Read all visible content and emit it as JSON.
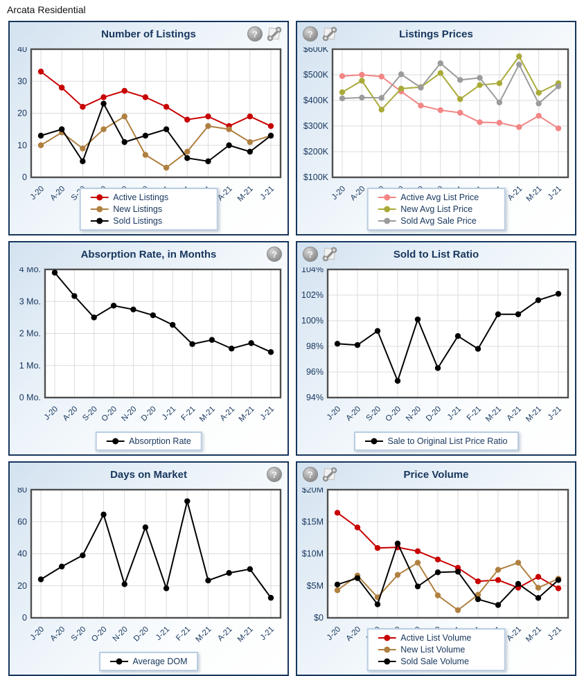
{
  "page": {
    "title": "Arcata Residential"
  },
  "palette": {
    "navy_text": "#17365D",
    "red": "#C80000",
    "tan": "#B08040",
    "salmon": "#F28585",
    "olive": "#A9AA38",
    "gray": "#9B9B9B",
    "black": "#000000",
    "grid_line": "#DBDBDB",
    "plot_border": "#4F4F4F",
    "panel_border": "#16365C"
  },
  "icons_legend": {
    "help": "question-mark-help",
    "settings": "wrench-settings"
  },
  "categories": [
    "J-20",
    "A-20",
    "S-20",
    "O-20",
    "N-20",
    "D-20",
    "J-21",
    "F-21",
    "M-21",
    "A-21",
    "M-21",
    "J-21"
  ],
  "chart_data": [
    {
      "type": "line",
      "title": "Number of Listings",
      "icons": {
        "side": "right",
        "help": true,
        "settings": true
      },
      "ylim": [
        0,
        40
      ],
      "yticks": [
        {
          "v": 0,
          "label": "0"
        },
        {
          "v": 10,
          "label": "10"
        },
        {
          "v": 20,
          "label": "20"
        },
        {
          "v": 30,
          "label": "30"
        },
        {
          "v": 40,
          "label": "40"
        }
      ],
      "legend_max_width": 0,
      "series": [
        {
          "name": "Active Listings",
          "color": "#C80000",
          "values": [
            33,
            28,
            22,
            25,
            27,
            25,
            22,
            18,
            19,
            16,
            19,
            16
          ]
        },
        {
          "name": "New Listings",
          "color": "#B08040",
          "values": [
            10,
            14,
            9,
            15,
            19,
            7,
            3,
            8,
            16,
            15,
            11,
            13
          ]
        },
        {
          "name": "Sold Listings",
          "color": "#000000",
          "values": [
            13,
            15,
            5,
            23,
            11,
            13,
            15,
            6,
            5,
            10,
            8,
            13
          ]
        }
      ]
    },
    {
      "type": "line",
      "title": "Listings Prices",
      "unit": "thousand dollars",
      "icons": {
        "side": "left",
        "help": true,
        "settings": true
      },
      "ylim": [
        100,
        600
      ],
      "yticks": [
        {
          "v": 100,
          "label": "$100K"
        },
        {
          "v": 200,
          "label": "$200K"
        },
        {
          "v": 300,
          "label": "$300K"
        },
        {
          "v": 400,
          "label": "$400K"
        },
        {
          "v": 500,
          "label": "$500K"
        },
        {
          "v": 600,
          "label": "$600K"
        }
      ],
      "legend_max_width": 392,
      "series": [
        {
          "name": "Active Avg List Price",
          "color": "#F28585",
          "values": [
            495,
            500,
            493,
            435,
            380,
            362,
            352,
            315,
            313,
            296,
            340,
            291
          ]
        },
        {
          "name": "New Avg List Price",
          "color": "#A9AA38",
          "values": [
            432,
            477,
            364,
            446,
            452,
            507,
            405,
            460,
            467,
            572,
            430,
            467
          ]
        },
        {
          "name": "Sold Avg Sale Price",
          "color": "#9B9B9B",
          "values": [
            408,
            411,
            410,
            502,
            450,
            545,
            480,
            488,
            392,
            540,
            388,
            455
          ]
        }
      ]
    },
    {
      "type": "line",
      "title": "Absorption Rate, in Months",
      "icons": {
        "side": "right",
        "help": true,
        "settings": false
      },
      "ylim": [
        0,
        4
      ],
      "yticks": [
        {
          "v": 0,
          "label": "0 Mo."
        },
        {
          "v": 1,
          "label": "1 Mo."
        },
        {
          "v": 2,
          "label": "2 Mo."
        },
        {
          "v": 3,
          "label": "3 Mo."
        },
        {
          "v": 4,
          "label": "4 Mo."
        }
      ],
      "legend_max_width": 0,
      "series": [
        {
          "name": "Absorption Rate",
          "color": "#000000",
          "values": [
            3.9,
            3.17,
            2.5,
            2.87,
            2.75,
            2.57,
            2.27,
            1.67,
            1.8,
            1.53,
            1.7,
            1.42
          ]
        }
      ]
    },
    {
      "type": "line",
      "title": "Sold to List Ratio",
      "icons": {
        "side": "left",
        "help": true,
        "settings": true
      },
      "ylim": [
        94,
        104
      ],
      "yticks": [
        {
          "v": 94,
          "label": "94%"
        },
        {
          "v": 96,
          "label": "96%"
        },
        {
          "v": 98,
          "label": "98%"
        },
        {
          "v": 100,
          "label": "100%"
        },
        {
          "v": 102,
          "label": "102%"
        },
        {
          "v": 104,
          "label": "104%"
        }
      ],
      "legend_max_width": 0,
      "series": [
        {
          "name": "Sale to Original List Price Ratio",
          "color": "#000000",
          "values": [
            98.2,
            98.1,
            99.2,
            95.3,
            100.1,
            96.3,
            98.8,
            97.8,
            100.5,
            100.5,
            101.6,
            102.1
          ]
        }
      ]
    },
    {
      "type": "line",
      "title": "Days on Market",
      "icons": {
        "side": "right",
        "help": true,
        "settings": false
      },
      "ylim": [
        0,
        80
      ],
      "yticks": [
        {
          "v": 0,
          "label": "0"
        },
        {
          "v": 20,
          "label": "20"
        },
        {
          "v": 40,
          "label": "40"
        },
        {
          "v": 60,
          "label": "60"
        },
        {
          "v": 80,
          "label": "80"
        }
      ],
      "legend_max_width": 0,
      "series": [
        {
          "name": "Average DOM",
          "color": "#000000",
          "values": [
            24,
            32,
            39,
            64.5,
            21,
            56.5,
            18.4,
            72.8,
            23.3,
            28,
            30.4,
            12.5
          ]
        }
      ]
    },
    {
      "type": "line",
      "title": "Price Volume",
      "unit": "million dollars",
      "icons": {
        "side": "left",
        "help": true,
        "settings": true
      },
      "ylim": [
        0,
        20
      ],
      "yticks": [
        {
          "v": 0,
          "label": "$0"
        },
        {
          "v": 5,
          "label": "$5M"
        },
        {
          "v": 10,
          "label": "$10M"
        },
        {
          "v": 15,
          "label": "$15M"
        },
        {
          "v": 20,
          "label": "$20M"
        }
      ],
      "legend_max_width": 360,
      "series": [
        {
          "name": "Active List Volume",
          "color": "#C80000",
          "values": [
            16.4,
            14.1,
            10.9,
            11.0,
            10.4,
            9.1,
            7.8,
            5.7,
            5.9,
            4.7,
            6.4,
            4.6
          ]
        },
        {
          "name": "New List Volume",
          "color": "#B08040",
          "values": [
            4.3,
            6.6,
            3.2,
            6.7,
            8.6,
            3.5,
            1.2,
            3.6,
            7.5,
            8.6,
            4.7,
            6.1
          ]
        },
        {
          "name": "Sold Sale Volume",
          "color": "#000000",
          "values": [
            5.2,
            6.2,
            2.1,
            11.6,
            4.9,
            7.1,
            7.2,
            2.9,
            2.0,
            5.3,
            3.1,
            5.9
          ]
        }
      ]
    }
  ]
}
